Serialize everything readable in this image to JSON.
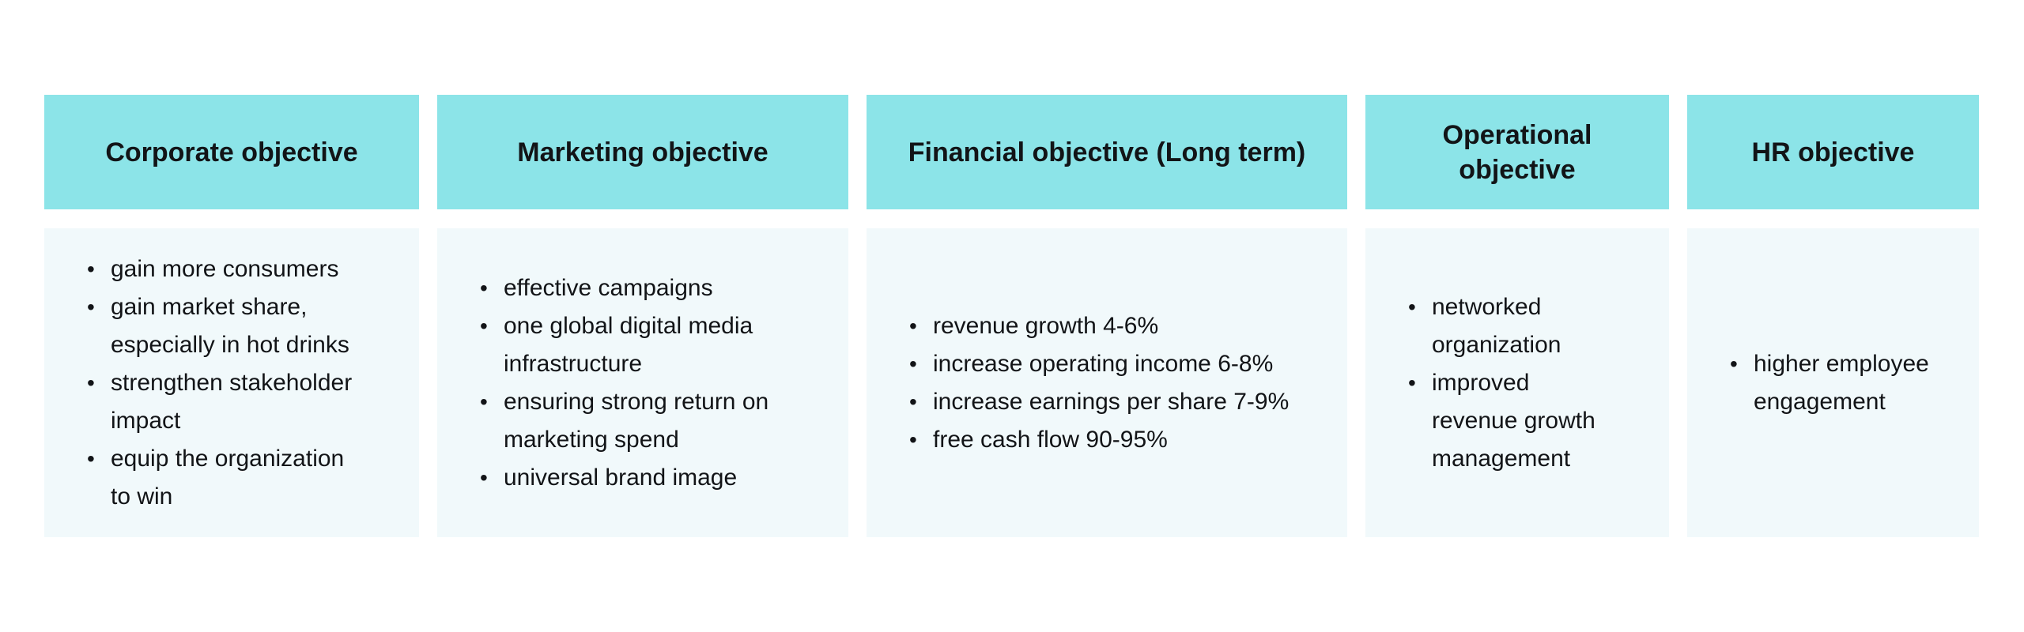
{
  "table": {
    "colors": {
      "header_bg": "#8ce4e8",
      "body_bg": "#f1f9fb",
      "text": "#121417",
      "page_bg": "#ffffff"
    },
    "columns": [
      {
        "header": "Corporate objective",
        "items": [
          "gain more consumers",
          "gain market share, especially in hot drinks",
          "strengthen stakeholder impact",
          "equip the organization to win"
        ]
      },
      {
        "header": "Marketing objective",
        "items": [
          "effective campaigns",
          "one global digital media infrastructure",
          "ensuring strong return on marketing spend",
          "universal brand image"
        ]
      },
      {
        "header": "Financial objective (Long term)",
        "items": [
          "revenue growth 4-6%",
          "increase operating income 6-8%",
          "increase earnings per share 7-9%",
          "free cash flow 90-95%"
        ]
      },
      {
        "header": "Operational objective",
        "items": [
          "networked organization",
          "improved revenue growth management"
        ]
      },
      {
        "header": "HR objective",
        "items": [
          "higher employee engagement"
        ]
      }
    ]
  }
}
